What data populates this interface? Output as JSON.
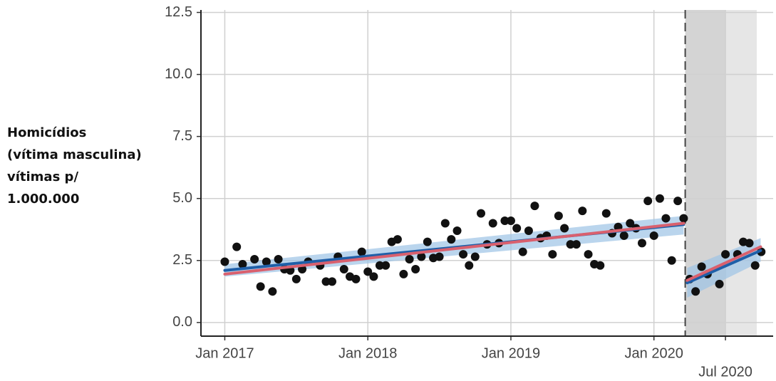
{
  "chart_data": {
    "type": "scatter",
    "ylabel_lines": [
      "Homicídios",
      "(vítima masculina)",
      "vítimas p/",
      "1.000.000"
    ],
    "xlim": [
      "2016-11-01",
      "2020-11-01"
    ],
    "ylim": [
      -0.55,
      12.6
    ],
    "yticks": [
      {
        "value": 0,
        "label": "0.0"
      },
      2.5,
      {
        "value": 5,
        "label": "5.0"
      },
      7.5,
      {
        "value": 10,
        "label": "10.0"
      },
      12.5
    ],
    "xticks": [
      {
        "value": "2017-01-01",
        "label": "Jan 2017"
      },
      {
        "value": "2018-01-01",
        "label": "Jan 2018"
      },
      {
        "value": "2019-01-01",
        "label": "Jan 2019"
      },
      {
        "value": "2020-01-01",
        "label": "Jan 2020"
      }
    ],
    "xticks2": [
      {
        "value": "2020-07-01",
        "label": "Jul 2020"
      }
    ],
    "grid": true,
    "color": "#111111",
    "x": [
      "2017-01-01",
      "2017-02-01",
      "2017-02-16",
      "2017-03-16",
      "2017-04-01",
      "2017-04-16",
      "2017-05-01",
      "2017-05-16",
      "2017-06-01",
      "2017-06-16",
      "2017-07-01",
      "2017-07-16",
      "2017-08-01",
      "2017-09-01",
      "2017-09-16",
      "2017-10-01",
      "2017-10-16",
      "2017-11-01",
      "2017-11-16",
      "2017-12-01",
      "2017-12-16",
      "2018-01-01",
      "2018-01-16",
      "2018-02-01",
      "2018-02-16",
      "2018-03-01",
      "2018-03-16",
      "2018-04-01",
      "2018-04-16",
      "2018-05-01",
      "2018-05-16",
      "2018-06-01",
      "2018-06-16",
      "2018-07-01",
      "2018-07-16",
      "2018-08-01",
      "2018-08-16",
      "2018-09-01",
      "2018-09-16",
      "2018-10-01",
      "2018-10-16",
      "2018-11-01",
      "2018-11-16",
      "2018-12-01",
      "2018-12-16",
      "2019-01-01",
      "2019-01-16",
      "2019-02-01",
      "2019-02-16",
      "2019-03-01",
      "2019-03-16",
      "2019-04-01",
      "2019-04-16",
      "2019-05-01",
      "2019-05-16",
      "2019-06-01",
      "2019-06-16",
      "2019-07-01",
      "2019-07-16",
      "2019-08-01",
      "2019-08-16",
      "2019-09-01",
      "2019-09-16",
      "2019-10-01",
      "2019-10-16",
      "2019-11-01",
      "2019-11-16",
      "2019-12-01",
      "2019-12-16",
      "2020-01-01",
      "2020-01-16",
      "2020-02-01",
      "2020-02-16",
      "2020-03-01",
      "2020-03-16",
      "2020-04-01",
      "2020-04-16",
      "2020-05-01",
      "2020-05-16",
      "2020-06-16",
      "2020-07-01",
      "2020-08-01",
      "2020-08-16",
      "2020-09-01",
      "2020-09-16",
      "2020-10-01"
    ],
    "values": [
      2.45,
      3.05,
      2.35,
      2.55,
      1.45,
      2.45,
      1.25,
      2.55,
      2.15,
      2.1,
      1.75,
      2.15,
      2.45,
      2.3,
      1.65,
      1.65,
      2.65,
      2.15,
      1.85,
      1.75,
      2.85,
      2.05,
      1.85,
      2.3,
      2.3,
      3.25,
      3.35,
      1.95,
      2.55,
      2.15,
      2.65,
      3.25,
      2.6,
      2.65,
      4.0,
      3.35,
      3.7,
      2.75,
      2.3,
      2.65,
      4.4,
      3.15,
      4.0,
      3.2,
      4.1,
      4.1,
      3.8,
      2.85,
      3.7,
      4.7,
      3.4,
      3.5,
      2.75,
      4.3,
      3.8,
      3.15,
      3.15,
      4.5,
      2.75,
      2.35,
      2.3,
      4.4,
      3.6,
      3.85,
      3.5,
      4.0,
      3.8,
      3.2,
      4.9,
      3.5,
      5.0,
      4.2,
      2.5,
      4.9,
      4.2,
      1.75,
      1.25,
      2.25,
      1.95,
      1.55,
      2.75,
      2.75,
      3.25,
      3.2,
      2.3,
      2.85
    ],
    "shaded_regions": [
      {
        "x": [
          "2020-03-20",
          "2020-07-01"
        ],
        "color": "#d4d4d4"
      },
      {
        "x": [
          "2020-07-01",
          "2020-09-20"
        ],
        "color": "#e6e6e6"
      }
    ],
    "vline": "2020-03-20",
    "trends": [
      {
        "color": "#1f5fa8",
        "band_color": "#9cc3e6",
        "x": [
          "2017-01-01",
          "2020-03-16"
        ],
        "values": [
          2.1,
          3.95
        ],
        "lower": [
          1.85,
          3.55
        ],
        "upper": [
          2.35,
          4.3
        ]
      },
      {
        "color": "#1f5fa8",
        "band_color": "#9cc3e6",
        "x": [
          "2020-03-25",
          "2020-09-30"
        ],
        "values": [
          1.6,
          2.9
        ],
        "lower": [
          1.0,
          2.45
        ],
        "upper": [
          2.2,
          3.4
        ]
      },
      {
        "color": "#d9606e",
        "x": [
          "2017-01-01",
          "2020-03-16"
        ],
        "values": [
          1.95,
          4.0
        ]
      },
      {
        "color": "#d9606e",
        "x": [
          "2020-03-25",
          "2020-09-30"
        ],
        "values": [
          1.7,
          3.05
        ]
      }
    ]
  }
}
